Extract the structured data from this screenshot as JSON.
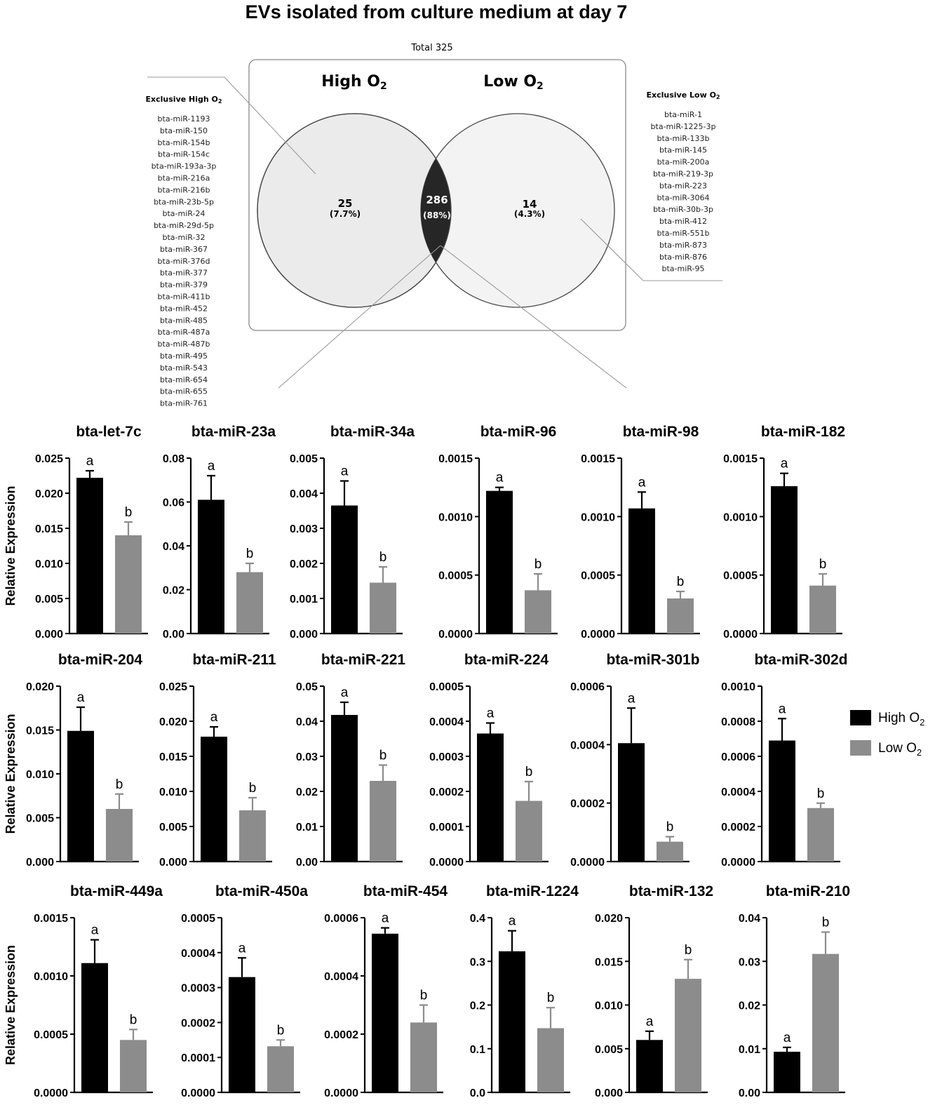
{
  "figure_title": "EVs isolated from culture medium at day 7",
  "venn": {
    "total_label": "Total 325",
    "left_set": {
      "label": "High O",
      "sub": "2",
      "count": "25",
      "pct": "(7.7%)"
    },
    "right_set": {
      "label": "Low O",
      "sub": "2",
      "count": "14",
      "pct": "(4.3%)"
    },
    "intersection": {
      "count": "286",
      "pct": "(88%)"
    },
    "exclusive_high": {
      "title": "Exclusive High O",
      "sub": "2",
      "items": [
        "bta-miR-1193",
        "bta-miR-150",
        "bta-miR-154b",
        "bta-miR-154c",
        "bta-miR-193a-3p",
        "bta-miR-216a",
        "bta-miR-216b",
        "bta-miR-23b-5p",
        "bta-miR-24",
        "bta-miR-29d-5p",
        "bta-miR-32",
        "bta-miR-367",
        "bta-miR-376d",
        "bta-miR-377",
        "bta-miR-379",
        "bta-miR-411b",
        "bta-miR-452",
        "bta-miR-485",
        "bta-miR-487a",
        "bta-miR-487b",
        "bta-miR-495",
        "bta-miR-543",
        "bta-miR-654",
        "bta-miR-655",
        "bta-miR-761"
      ]
    },
    "exclusive_low": {
      "title": "Exclusive Low O",
      "sub": "2",
      "items": [
        "bta-miR-1",
        "bta-miR-1225-3p",
        "bta-miR-133b",
        "bta-miR-145",
        "bta-miR-200a",
        "bta-miR-219-3p",
        "bta-miR-223",
        "bta-miR-3064",
        "bta-miR-30b-3p",
        "bta-miR-412",
        "bta-miR-551b",
        "bta-miR-873",
        "bta-miR-876",
        "bta-miR-95"
      ]
    }
  },
  "legend": [
    {
      "label": "High O",
      "sub": "2",
      "color": "#000000"
    },
    {
      "label": "Low O",
      "sub": "2",
      "color": "#8c8c8c"
    }
  ],
  "ylabel": "Relative Expression",
  "chart_data": [
    {
      "type": "bar",
      "title": "bta-let-7c",
      "categories": [
        "High O2",
        "Low O2"
      ],
      "values": [
        0.0222,
        0.014
      ],
      "errors": [
        0.001,
        0.0019
      ],
      "letters": [
        "a",
        "b"
      ],
      "ylim": [
        0,
        0.025
      ],
      "yticks": [
        "0.000",
        "0.005",
        "0.010",
        "0.015",
        "0.020",
        "0.025"
      ],
      "ylabel": "Relative Expression"
    },
    {
      "type": "bar",
      "title": "bta-miR-23a",
      "categories": [
        "High O2",
        "Low O2"
      ],
      "values": [
        0.061,
        0.028
      ],
      "errors": [
        0.011,
        0.004
      ],
      "letters": [
        "a",
        "b"
      ],
      "ylim": [
        0,
        0.08
      ],
      "yticks": [
        "0.00",
        "0.02",
        "0.04",
        "0.06",
        "0.08"
      ]
    },
    {
      "type": "bar",
      "title": "bta-miR-34a",
      "categories": [
        "High O2",
        "Low O2"
      ],
      "values": [
        0.00365,
        0.00145
      ],
      "errors": [
        0.0007,
        0.00045
      ],
      "letters": [
        "a",
        "b"
      ],
      "ylim": [
        0,
        0.005
      ],
      "yticks": [
        "0.000",
        "0.001",
        "0.002",
        "0.003",
        "0.004",
        "0.005"
      ]
    },
    {
      "type": "bar",
      "title": "bta-miR-96",
      "categories": [
        "High O2",
        "Low O2"
      ],
      "values": [
        0.00122,
        0.00037
      ],
      "errors": [
        3e-05,
        0.00014
      ],
      "letters": [
        "a",
        "b"
      ],
      "ylim": [
        0,
        0.0015
      ],
      "yticks": [
        "0.0000",
        "0.0005",
        "0.0010",
        "0.0015"
      ]
    },
    {
      "type": "bar",
      "title": "bta-miR-98",
      "categories": [
        "High O2",
        "Low O2"
      ],
      "values": [
        0.00107,
        0.0003
      ],
      "errors": [
        0.00014,
        6e-05
      ],
      "letters": [
        "a",
        "b"
      ],
      "ylim": [
        0,
        0.0015
      ],
      "yticks": [
        "0.0000",
        "0.0005",
        "0.0010",
        "0.0015"
      ]
    },
    {
      "type": "bar",
      "title": "bta-miR-182",
      "categories": [
        "High O2",
        "Low O2"
      ],
      "values": [
        0.00126,
        0.00041
      ],
      "errors": [
        0.00011,
        0.0001
      ],
      "letters": [
        "a",
        "b"
      ],
      "ylim": [
        0,
        0.0015
      ],
      "yticks": [
        "0.0000",
        "0.0005",
        "0.0010",
        "0.0015"
      ]
    },
    {
      "type": "bar",
      "title": "bta-miR-204",
      "categories": [
        "High O2",
        "Low O2"
      ],
      "values": [
        0.0149,
        0.006
      ],
      "errors": [
        0.0027,
        0.0017
      ],
      "letters": [
        "a",
        "b"
      ],
      "ylim": [
        0,
        0.02
      ],
      "yticks": [
        "0.000",
        "0.005",
        "0.010",
        "0.015",
        "0.020"
      ],
      "ylabel": "Relative Expression"
    },
    {
      "type": "bar",
      "title": "bta-miR-211",
      "categories": [
        "High O2",
        "Low O2"
      ],
      "values": [
        0.0178,
        0.0073
      ],
      "errors": [
        0.0014,
        0.0018
      ],
      "letters": [
        "a",
        "b"
      ],
      "ylim": [
        0,
        0.025
      ],
      "yticks": [
        "0.000",
        "0.005",
        "0.010",
        "0.015",
        "0.020",
        "0.025"
      ]
    },
    {
      "type": "bar",
      "title": "bta-miR-221",
      "categories": [
        "High O2",
        "Low O2"
      ],
      "values": [
        0.0418,
        0.023
      ],
      "errors": [
        0.0036,
        0.0045
      ],
      "letters": [
        "a",
        "b"
      ],
      "ylim": [
        0,
        0.05
      ],
      "yticks": [
        "0.00",
        "0.01",
        "0.02",
        "0.03",
        "0.04",
        "0.05"
      ]
    },
    {
      "type": "bar",
      "title": "bta-miR-224",
      "categories": [
        "High O2",
        "Low O2"
      ],
      "values": [
        0.000365,
        0.000173
      ],
      "errors": [
        3e-05,
        5.5e-05
      ],
      "letters": [
        "a",
        "b"
      ],
      "ylim": [
        0,
        0.0005
      ],
      "yticks": [
        "0.0000",
        "0.0001",
        "0.0002",
        "0.0003",
        "0.0004",
        "0.0005"
      ]
    },
    {
      "type": "bar",
      "title": "bta-miR-301b",
      "categories": [
        "High O2",
        "Low O2"
      ],
      "values": [
        0.000405,
        6.8e-05
      ],
      "errors": [
        0.00012,
        1.7e-05
      ],
      "letters": [
        "a",
        "b"
      ],
      "ylim": [
        0,
        0.0006
      ],
      "yticks": [
        "0.0000",
        "0.0002",
        "0.0004",
        "0.0006"
      ]
    },
    {
      "type": "bar",
      "title": "bta-miR-302d",
      "categories": [
        "High O2",
        "Low O2"
      ],
      "values": [
        0.00069,
        0.000305
      ],
      "errors": [
        0.000125,
        2.8e-05
      ],
      "letters": [
        "a",
        "b"
      ],
      "ylim": [
        0,
        0.001
      ],
      "yticks": [
        "0.0000",
        "0.0002",
        "0.0004",
        "0.0006",
        "0.0008",
        "0.0010"
      ]
    },
    {
      "type": "bar",
      "title": "bta-miR-449a",
      "categories": [
        "High O2",
        "Low O2"
      ],
      "values": [
        0.00111,
        0.00045
      ],
      "errors": [
        0.0002,
        9e-05
      ],
      "letters": [
        "a",
        "b"
      ],
      "ylim": [
        0,
        0.0015
      ],
      "yticks": [
        "0.0000",
        "0.0005",
        "0.0010",
        "0.0015"
      ],
      "ylabel": "Relative Expression"
    },
    {
      "type": "bar",
      "title": "bta-miR-450a",
      "categories": [
        "High O2",
        "Low O2"
      ],
      "values": [
        0.00033,
        0.000132
      ],
      "errors": [
        5.5e-05,
        1.8e-05
      ],
      "letters": [
        "a",
        "b"
      ],
      "ylim": [
        0,
        0.0005
      ],
      "yticks": [
        "0.0000",
        "0.0001",
        "0.0002",
        "0.0003",
        "0.0004",
        "0.0005"
      ]
    },
    {
      "type": "bar",
      "title": "bta-miR-454",
      "categories": [
        "High O2",
        "Low O2"
      ],
      "values": [
        0.000545,
        0.00024
      ],
      "errors": [
        2e-05,
        6e-05
      ],
      "letters": [
        "a",
        "b"
      ],
      "ylim": [
        0,
        0.0006
      ],
      "yticks": [
        "0.0000",
        "0.0002",
        "0.0004",
        "0.0006"
      ]
    },
    {
      "type": "bar",
      "title": "bta-miR-1224",
      "categories": [
        "High O2",
        "Low O2"
      ],
      "values": [
        0.323,
        0.147
      ],
      "errors": [
        0.047,
        0.047
      ],
      "letters": [
        "a",
        "b"
      ],
      "ylim": [
        0,
        0.4
      ],
      "yticks": [
        "0.0",
        "0.1",
        "0.2",
        "0.3",
        "0.4"
      ]
    },
    {
      "type": "bar",
      "title": "bta-miR-132",
      "categories": [
        "High O2",
        "Low O2"
      ],
      "values": [
        0.006,
        0.013
      ],
      "errors": [
        0.001,
        0.0022
      ],
      "letters": [
        "a",
        "b"
      ],
      "ylim": [
        0,
        0.02
      ],
      "yticks": [
        "0.000",
        "0.005",
        "0.010",
        "0.015",
        "0.020"
      ]
    },
    {
      "type": "bar",
      "title": "bta-miR-210",
      "categories": [
        "High O2",
        "Low O2"
      ],
      "values": [
        0.0093,
        0.0317
      ],
      "errors": [
        0.001,
        0.005
      ],
      "letters": [
        "a",
        "b"
      ],
      "ylim": [
        0,
        0.04
      ],
      "yticks": [
        "0.00",
        "0.01",
        "0.02",
        "0.03",
        "0.04"
      ]
    }
  ]
}
